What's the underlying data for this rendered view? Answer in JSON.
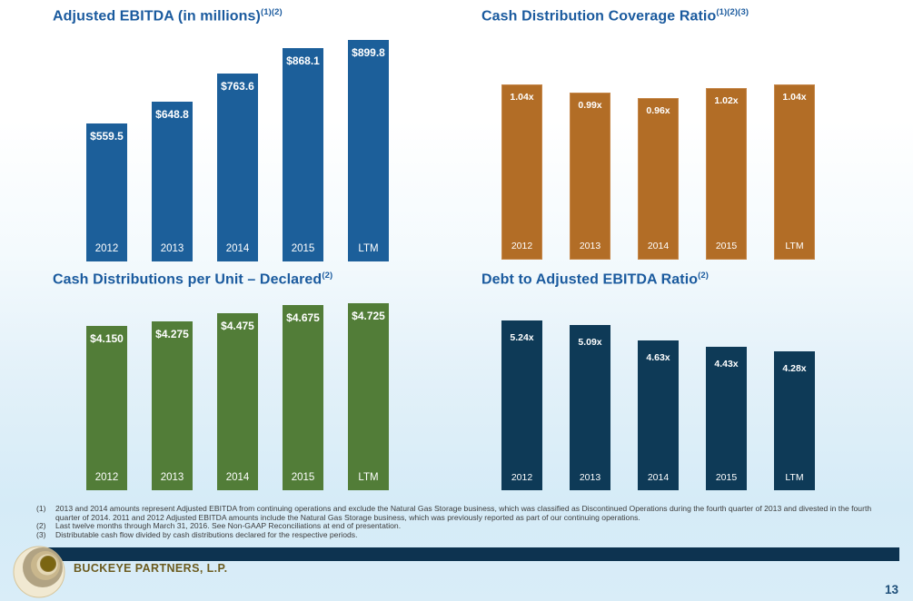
{
  "page": {
    "number": "13"
  },
  "footer": {
    "company": "BUCKEYE PARTNERS, L.P.",
    "logo_icon": "buckeye-concentric-circles"
  },
  "footnotes": [
    {
      "marker": "(1)",
      "text": "2013 and 2014 amounts represent Adjusted EBITDA from continuing operations and exclude the Natural Gas Storage business, which was classified as Discontinued Operations during the fourth quarter of 2013 and divested in the fourth quarter of 2014.  2011 and 2012 Adjusted EBITDA amounts include the Natural Gas Storage business, which was previously reported as part of our continuing operations."
    },
    {
      "marker": "(2)",
      "text": "Last twelve months through March 31, 2016. See Non-GAAP Reconciliations at end of presentation."
    },
    {
      "marker": "(3)",
      "text": "Distributable cash flow divided by cash distributions declared for the respective periods."
    }
  ],
  "chart_data": [
    {
      "id": "adjusted-ebitda",
      "type": "bar",
      "title": "Adjusted EBITDA (in millions)",
      "title_refs": "(1)(2)",
      "categories": [
        "2012",
        "2013",
        "2014",
        "2015",
        "LTM"
      ],
      "values": [
        559.5,
        648.8,
        763.6,
        868.1,
        899.8
      ],
      "value_labels": [
        "$559.5",
        "$648.8",
        "$763.6",
        "$868.1",
        "$899.8"
      ],
      "bar_color": "#1c5f9a",
      "ylim": [
        0,
        899.8
      ],
      "xlabel": "",
      "ylabel": "",
      "grid": false,
      "legend": false,
      "labels_position": "inside-top"
    },
    {
      "id": "coverage-ratio",
      "type": "bar",
      "title": "Cash Distribution Coverage Ratio",
      "title_refs": "(1)(2)(3)",
      "categories": [
        "2012",
        "2013",
        "2014",
        "2015",
        "LTM"
      ],
      "values": [
        1.04,
        0.99,
        0.96,
        1.02,
        1.04
      ],
      "value_labels": [
        "1.04x",
        "0.99x",
        "0.96x",
        "1.02x",
        "1.04x"
      ],
      "bar_color": "#b26d26",
      "ylim": [
        0,
        1.04
      ],
      "xlabel": "",
      "ylabel": "",
      "grid": false,
      "legend": false,
      "labels_position": "inside-top"
    },
    {
      "id": "distributions-per-unit",
      "type": "bar",
      "title": "Cash Distributions per Unit – Declared",
      "title_refs": "(2)",
      "categories": [
        "2012",
        "2013",
        "2014",
        "2015",
        "LTM"
      ],
      "values": [
        4.15,
        4.275,
        4.475,
        4.675,
        4.725
      ],
      "value_labels": [
        "$4.150",
        "$4.275",
        "$4.475",
        "$4.675",
        "$4.725"
      ],
      "bar_color": "#527d38",
      "ylim": [
        0,
        4.725
      ],
      "xlabel": "",
      "ylabel": "",
      "grid": false,
      "legend": false,
      "labels_position": "inside-top"
    },
    {
      "id": "debt-to-ebitda",
      "type": "bar",
      "title": "Debt to Adjusted EBITDA Ratio",
      "title_refs": "(2)",
      "categories": [
        "2012",
        "2013",
        "2014",
        "2015",
        "LTM"
      ],
      "values": [
        5.24,
        5.09,
        4.63,
        4.43,
        4.28
      ],
      "value_labels": [
        "5.24x",
        "5.09x",
        "4.63x",
        "4.43x",
        "4.28x"
      ],
      "bar_color": "#0e3a57",
      "ylim": [
        0,
        5.24
      ],
      "xlabel": "",
      "ylabel": "",
      "grid": false,
      "legend": false,
      "labels_position": "inside-top"
    }
  ]
}
